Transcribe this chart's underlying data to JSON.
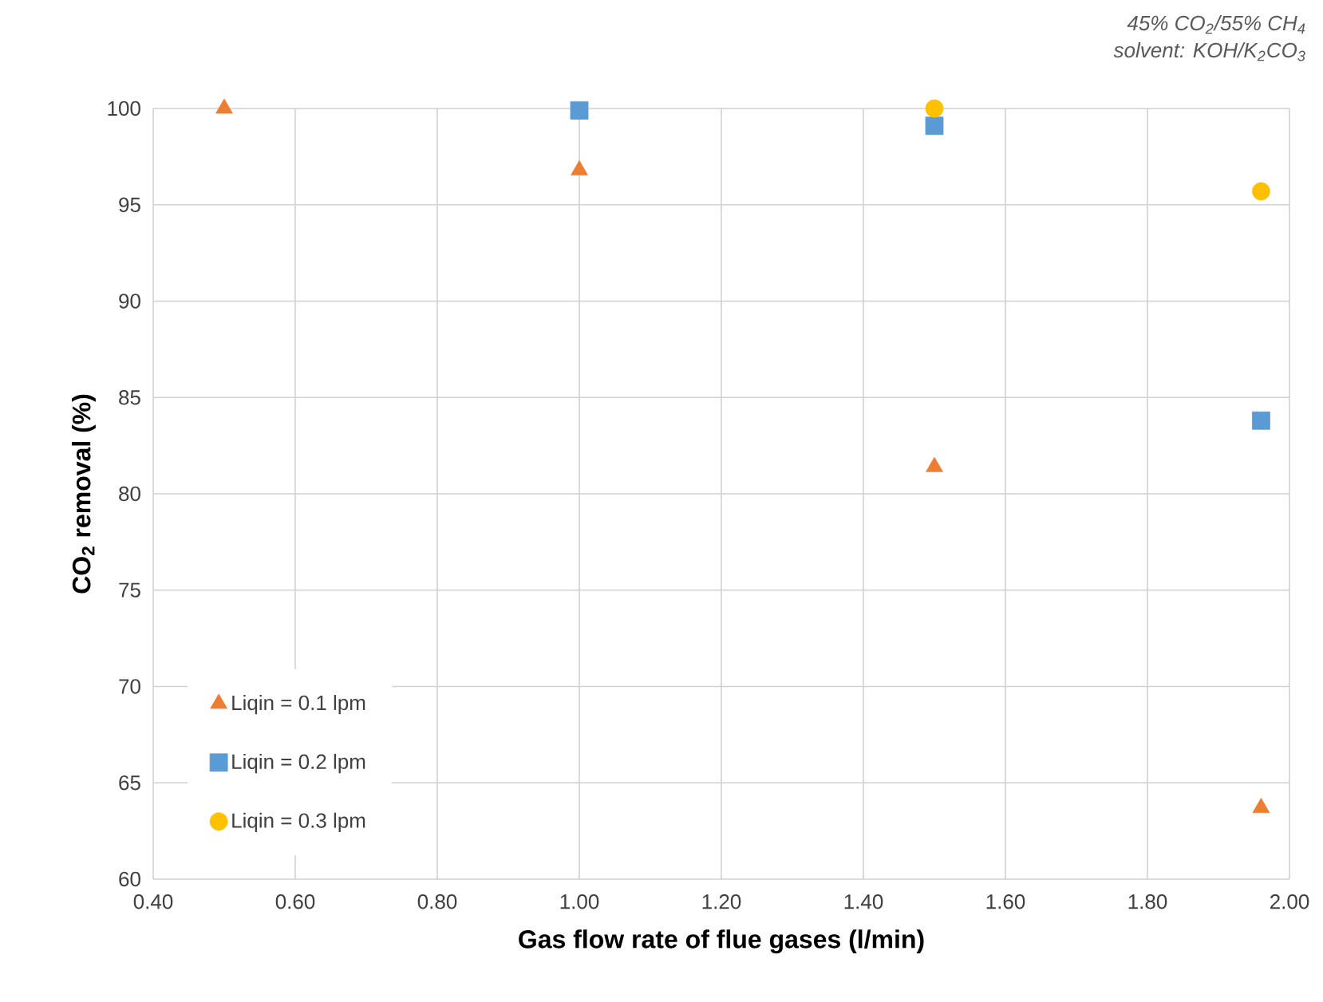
{
  "chart_data": {
    "type": "scatter",
    "xlabel": "Gas flow rate of flue gases (l/min)",
    "ylabel": "CO$_{2}$ removal (%)",
    "annotations": [
      "45% CO$_{2}$/55% CH$_{4}$",
      "solvent: KOH/K$_{2}$CO$_{3}$"
    ],
    "series": [
      {
        "name": "Liqin = 0.1 lpm",
        "color": "#ed7d31",
        "marker": "triangle",
        "x": [
          0.5,
          1.0,
          1.5,
          1.96
        ],
        "values": [
          100.0,
          96.8,
          81.4,
          63.7
        ]
      },
      {
        "name": "Liqin = 0.2 lpm",
        "color": "#5b9bd5",
        "marker": "square",
        "x": [
          1.0,
          1.5,
          1.96
        ],
        "values": [
          99.9,
          99.1,
          83.8
        ]
      },
      {
        "name": "Liqin = 0.3 lpm",
        "color": "#ffc000",
        "marker": "circle",
        "x": [
          1.5,
          1.96
        ],
        "values": [
          100.0,
          95.7
        ]
      }
    ],
    "xlim": [
      0.4,
      2.0
    ],
    "xticks": [
      {
        "value": 0.4,
        "label": "0.40"
      },
      {
        "value": 0.6,
        "label": "0.60"
      },
      {
        "value": 0.8,
        "label": "0.80"
      },
      {
        "value": 1.0,
        "label": "1.00"
      },
      {
        "value": 1.2,
        "label": "1.20"
      },
      {
        "value": 1.4,
        "label": "1.40"
      },
      {
        "value": 1.6,
        "label": "1.60"
      },
      {
        "value": 1.8,
        "label": "1.80"
      },
      {
        "value": 2.0,
        "label": "2.00"
      }
    ],
    "ylim": [
      60,
      100
    ],
    "yticks": [
      60,
      65,
      70,
      75,
      80,
      85,
      90,
      95,
      100
    ],
    "grid": true,
    "legend": "bottom left"
  }
}
